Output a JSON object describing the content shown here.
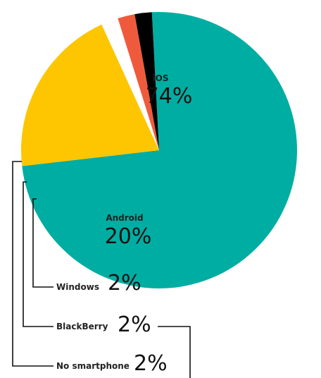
{
  "chart_data": {
    "type": "pie",
    "slices": [
      {
        "label": "iOS",
        "value_label": "74%",
        "value": 74,
        "color": "#00ADA2"
      },
      {
        "label": "Android",
        "value_label": "20%",
        "value": 20,
        "color": "#FDC600"
      },
      {
        "label": "Windows",
        "value_label": "2%",
        "value": 2,
        "color": "#FFFFFF"
      },
      {
        "label": "BlackBerry",
        "value_label": "2%",
        "value": 2,
        "color": "#F05A3C"
      },
      {
        "label": "No smartphone",
        "value_label": "2%",
        "value": 2,
        "color": "#000000"
      }
    ]
  }
}
